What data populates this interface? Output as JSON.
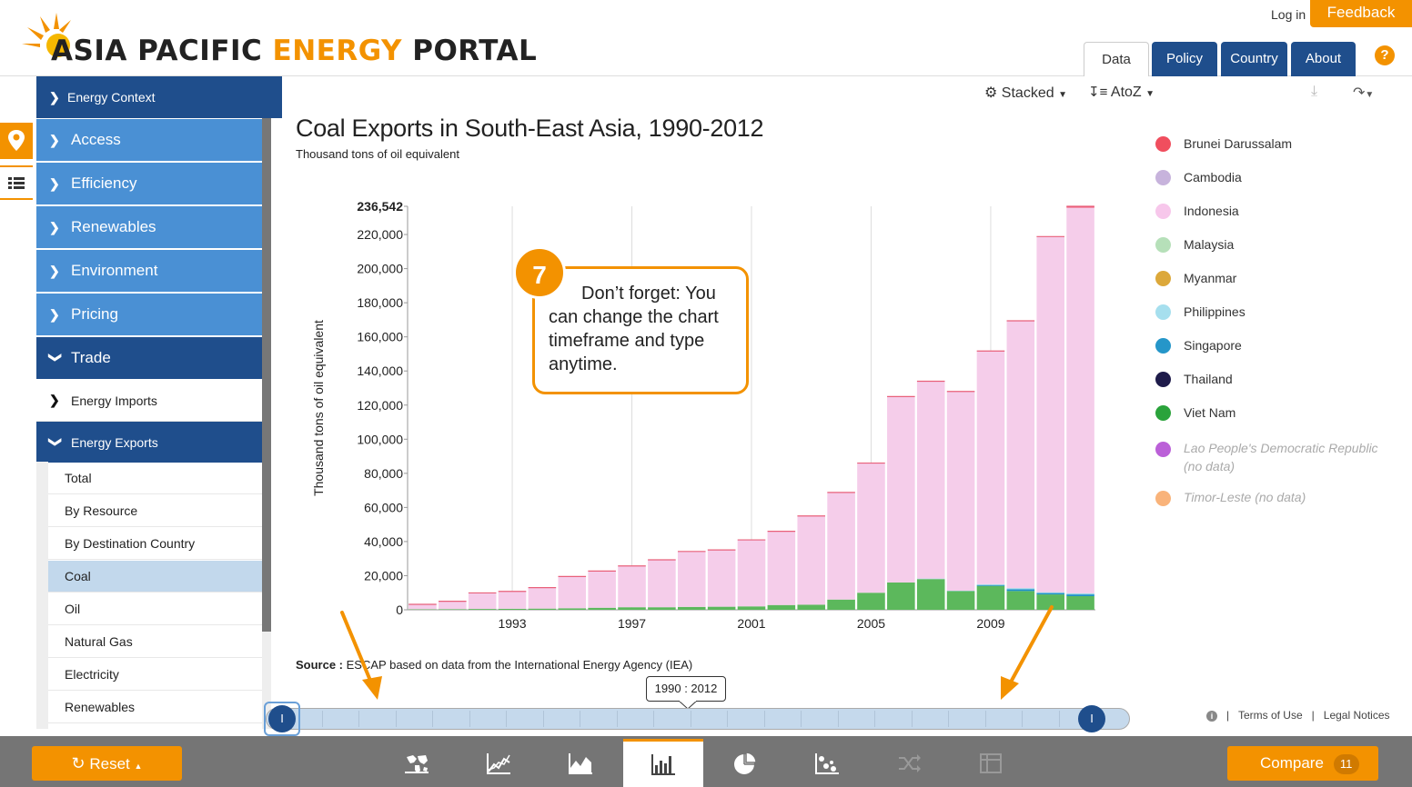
{
  "header": {
    "logo_text_1": "ASIA PACIFIC",
    "logo_text_2": "ENERGY",
    "logo_text_3": "PORTAL",
    "login_label": "Log in",
    "feedback_label": "Feedback",
    "tabs": [
      {
        "label": "Data",
        "active": true
      },
      {
        "label": "Policy",
        "active": false
      },
      {
        "label": "Country",
        "active": false
      },
      {
        "label": "About",
        "active": false
      }
    ],
    "help_label": "?"
  },
  "sidebar": {
    "context_label": "Energy Context",
    "items": [
      {
        "label": "Access"
      },
      {
        "label": "Efficiency"
      },
      {
        "label": "Renewables"
      },
      {
        "label": "Environment"
      },
      {
        "label": "Pricing"
      },
      {
        "label": "Trade"
      },
      {
        "label": "Energy Imports"
      },
      {
        "label": "Energy Exports"
      }
    ],
    "sub_items": [
      {
        "label": "Total",
        "selected": false
      },
      {
        "label": "By Resource",
        "selected": false
      },
      {
        "label": "By Destination Country",
        "selected": false
      },
      {
        "label": "Coal",
        "selected": true
      },
      {
        "label": "Oil",
        "selected": false
      },
      {
        "label": "Natural Gas",
        "selected": false
      },
      {
        "label": "Electricity",
        "selected": false
      },
      {
        "label": "Renewables",
        "selected": false
      }
    ]
  },
  "toolbar": {
    "stacked_label": "Stacked",
    "sort_label": "AtoZ"
  },
  "chart": {
    "title": "Coal Exports in South-East Asia, 1990-2012",
    "subtitle": "Thousand tons of oil equivalent",
    "source_label": "Source :",
    "source_text": "ESCAP based on data from the International Energy Agency (IEA)"
  },
  "chart_data": {
    "type": "bar",
    "stacked": true,
    "title": "Coal Exports in South-East Asia, 1990-2012",
    "subtitle": "Thousand tons of oil equivalent",
    "ylabel": "Thousand tons of oil equivalent",
    "xlabel": "",
    "ylim": [
      0,
      236542
    ],
    "yticks": [
      "0",
      "20,000",
      "40,000",
      "60,000",
      "80,000",
      "100,000",
      "120,000",
      "140,000",
      "160,000",
      "180,000",
      "200,000",
      "220,000",
      "236,542"
    ],
    "ytick_values": [
      0,
      20000,
      40000,
      60000,
      80000,
      100000,
      120000,
      140000,
      160000,
      180000,
      200000,
      220000,
      236542
    ],
    "xticks": [
      "1993",
      "1997",
      "2001",
      "2005",
      "2009"
    ],
    "categories": [
      "1990",
      "1991",
      "1992",
      "1993",
      "1994",
      "1995",
      "1996",
      "1997",
      "1998",
      "1999",
      "2000",
      "2001",
      "2002",
      "2003",
      "2004",
      "2005",
      "2006",
      "2007",
      "2008",
      "2009",
      "2010",
      "2011",
      "2012"
    ],
    "series": [
      {
        "name": "Viet Nam",
        "color": "#5cb85c",
        "values": [
          300,
          400,
          500,
          600,
          700,
          900,
          1200,
          1500,
          1500,
          1700,
          1800,
          2000,
          2800,
          3000,
          6000,
          10000,
          16000,
          18000,
          11000,
          14000,
          11000,
          9000,
          8000
        ]
      },
      {
        "name": "Singapore",
        "color": "#1e90c8",
        "values": [
          0,
          0,
          0,
          0,
          0,
          0,
          0,
          0,
          0,
          0,
          0,
          0,
          0,
          0,
          0,
          0,
          0,
          0,
          0,
          500,
          1000,
          800,
          1000
        ]
      },
      {
        "name": "Philippines",
        "color": "#9ed8e6",
        "values": [
          0,
          0,
          0,
          0,
          0,
          0,
          0,
          0,
          0,
          0,
          0,
          0,
          0,
          0,
          0,
          0,
          0,
          300,
          200,
          500,
          700,
          500,
          700
        ]
      },
      {
        "name": "Indonesia",
        "color": "#f5cdea",
        "values": [
          2900,
          4600,
          9400,
          10200,
          12300,
          18600,
          21500,
          24200,
          27800,
          32500,
          33300,
          39000,
          43200,
          52000,
          62800,
          76000,
          109000,
          115700,
          116800,
          136700,
          156700,
          208500,
          226000
        ]
      },
      {
        "name": "Brunei Darussalam",
        "color": "#f0607a",
        "values": [
          0,
          0,
          0,
          0,
          0,
          0,
          0,
          0,
          0,
          0,
          0,
          0,
          0,
          0,
          0,
          0,
          0,
          0,
          0,
          0,
          0,
          0,
          842
        ]
      }
    ]
  },
  "legend": {
    "items": [
      {
        "label": "Brunei Darussalam",
        "color": "#f04e5e",
        "nodata": false
      },
      {
        "label": "Cambodia",
        "color": "#c7b3dc",
        "nodata": false
      },
      {
        "label": "Indonesia",
        "color": "#f7c7eb",
        "nodata": false
      },
      {
        "label": "Malaysia",
        "color": "#b6e0b9",
        "nodata": false
      },
      {
        "label": "Myanmar",
        "color": "#dca83a",
        "nodata": false
      },
      {
        "label": "Philippines",
        "color": "#a6dfee",
        "nodata": false
      },
      {
        "label": "Singapore",
        "color": "#2596c9",
        "nodata": false
      },
      {
        "label": "Thailand",
        "color": "#1e1b4a",
        "nodata": false
      },
      {
        "label": "Viet Nam",
        "color": "#2aa33b",
        "nodata": false
      },
      {
        "label": "Lao People's Democratic Republic (no data)",
        "color": "#bb60d8",
        "nodata": true
      },
      {
        "label": "Timor-Leste (no data)",
        "color": "#f9b37a",
        "nodata": true
      }
    ]
  },
  "callout": {
    "number": "7",
    "text": "Don’t forget: You can change the chart timeframe and type anytime."
  },
  "range": {
    "label": "1990 : 2012",
    "handle_left": "I",
    "handle_right": "I"
  },
  "footer": {
    "terms_label": "Terms of Use",
    "legal_label": "Legal Notices",
    "separator": "|"
  },
  "bottom": {
    "reset_label": "Reset",
    "compare_label": "Compare",
    "compare_count": "11"
  },
  "colors": {
    "accent": "#f39200",
    "brand_dark": "#1f4e8c",
    "brand_light": "#4a90d4"
  }
}
